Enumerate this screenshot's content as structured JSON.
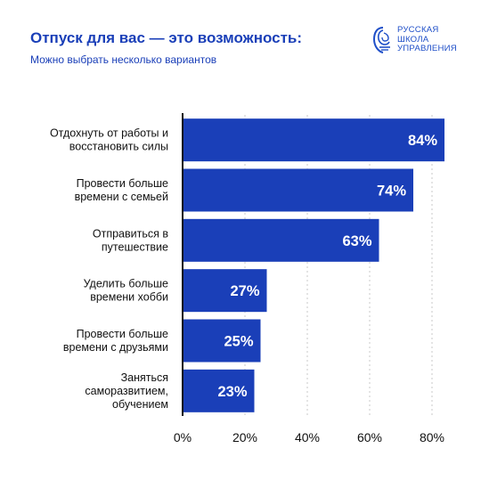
{
  "header": {
    "title": "Отпуск для вас — это возможность:",
    "subtitle": "Можно выбрать несколько вариантов"
  },
  "logo": {
    "lines": [
      "РУССКАЯ",
      "ШКОЛА",
      "УПРАВЛЕНИЯ"
    ],
    "icon": "rsu-emblem-icon"
  },
  "colors": {
    "bar": "#1a3fb8",
    "title": "#1a3fb8",
    "grid": "#c8c8c8",
    "axis": "#111111"
  },
  "chart_data": {
    "type": "bar",
    "orientation": "horizontal",
    "categories": [
      [
        "Отдохнуть от работы и",
        "восстановить силы"
      ],
      [
        "Провести больше",
        "времени с семьей"
      ],
      [
        "Отправиться в",
        "путешествие"
      ],
      [
        "Уделить больше",
        "времени хобби"
      ],
      [
        "Провести больше",
        "времени с друзьями"
      ],
      [
        "Заняться",
        "саморазвитием,",
        "обучением"
      ]
    ],
    "values": [
      84,
      74,
      63,
      27,
      25,
      23
    ],
    "value_labels": [
      "84%",
      "74%",
      "63%",
      "27%",
      "25%",
      "23%"
    ],
    "xlim": [
      0,
      80
    ],
    "xticks": [
      0,
      20,
      40,
      60,
      80
    ],
    "xtick_labels": [
      "0%",
      "20%",
      "40%",
      "60%",
      "80%"
    ],
    "grid": true,
    "grid_style": "dotted vertical",
    "legend": "none"
  }
}
